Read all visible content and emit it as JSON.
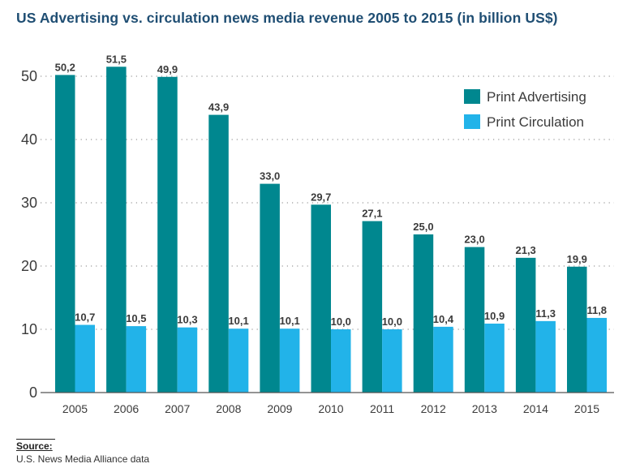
{
  "title": "US Advertising vs. circulation news media revenue 2005 to 2015 (in billion US$)",
  "source": {
    "label": "Source:",
    "text": "U.S. News Media Alliance data"
  },
  "chart_data": {
    "type": "bar",
    "title": "US Advertising vs. circulation news media revenue 2005 to 2015 (in billion US$)",
    "xlabel": "",
    "ylabel": "",
    "ylim": [
      0,
      50
    ],
    "yticks": [
      "0",
      "10",
      "20",
      "30",
      "40",
      "50"
    ],
    "grid": "horizontal dotted",
    "legend_position": "top-right",
    "categories": [
      "2005",
      "2006",
      "2007",
      "2008",
      "2009",
      "2010",
      "2011",
      "2012",
      "2013",
      "2014",
      "2015"
    ],
    "series": [
      {
        "name": "Print Advertising",
        "color": "#00878f",
        "values": [
          50.2,
          51.5,
          49.9,
          43.9,
          33.0,
          29.7,
          27.1,
          25.0,
          23.0,
          21.3,
          19.9
        ],
        "labels": [
          "50,2",
          "51,5",
          "49,9",
          "43,9",
          "33,0",
          "29,7",
          "27,1",
          "25,0",
          "23,0",
          "21,3",
          "19,9"
        ]
      },
      {
        "name": "Print Circulation",
        "color": "#22b3e9",
        "values": [
          10.7,
          10.5,
          10.3,
          10.1,
          10.1,
          10.0,
          10.0,
          10.4,
          10.9,
          11.3,
          11.8
        ],
        "labels": [
          "10,7",
          "10,5",
          "10,3",
          "10,1",
          "10,1",
          "10,0",
          "10,0",
          "10,4",
          "10,9",
          "11,3",
          "11,8"
        ]
      }
    ]
  }
}
